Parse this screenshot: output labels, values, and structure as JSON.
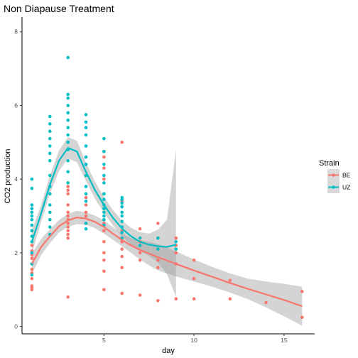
{
  "chart_data": {
    "type": "scatter",
    "title": "Non Diapause Treatment",
    "xlabel": "day",
    "ylabel": "CO2 production",
    "xlim": [
      0.45,
      16.7
    ],
    "ylim": [
      -0.2,
      8.4
    ],
    "x_ticks": [
      5,
      10,
      15
    ],
    "y_ticks": [
      0,
      2,
      4,
      6,
      8
    ],
    "grid": false,
    "legend": {
      "title": "Strain",
      "position": "right"
    },
    "series": [
      {
        "name": "BE",
        "color": "#F8766D",
        "points": [
          [
            1,
            1.0
          ],
          [
            1,
            1.05
          ],
          [
            1,
            1.1
          ],
          [
            1,
            1.3
          ],
          [
            1,
            1.45
          ],
          [
            1,
            1.55
          ],
          [
            1,
            1.7
          ],
          [
            1,
            1.85
          ],
          [
            1,
            1.95
          ],
          [
            1,
            2.05
          ],
          [
            1,
            2.2
          ],
          [
            3,
            0.8
          ],
          [
            3,
            2.4
          ],
          [
            3,
            2.5
          ],
          [
            3,
            2.6
          ],
          [
            3,
            2.7
          ],
          [
            3,
            2.8
          ],
          [
            3,
            2.9
          ],
          [
            3,
            3.0
          ],
          [
            3,
            3.1
          ],
          [
            3,
            3.3
          ],
          [
            3,
            3.6
          ],
          [
            3,
            3.7
          ],
          [
            3,
            3.8
          ],
          [
            4,
            2.8
          ],
          [
            4,
            3.0
          ],
          [
            4,
            3.1
          ],
          [
            4,
            3.3
          ],
          [
            4,
            3.5
          ],
          [
            5,
            1.0
          ],
          [
            5,
            1.5
          ],
          [
            5,
            1.8
          ],
          [
            5,
            2.0
          ],
          [
            5,
            2.3
          ],
          [
            5,
            2.6
          ],
          [
            5,
            2.8
          ],
          [
            5,
            3.3
          ],
          [
            5,
            3.6
          ],
          [
            5,
            4.0
          ],
          [
            5,
            4.3
          ],
          [
            5,
            4.6
          ],
          [
            5,
            4.75
          ],
          [
            6,
            0.9
          ],
          [
            6,
            1.6
          ],
          [
            6,
            1.9
          ],
          [
            6,
            2.1
          ],
          [
            6,
            2.3
          ],
          [
            6,
            2.6
          ],
          [
            6,
            3.4
          ],
          [
            6,
            5.0
          ],
          [
            7,
            0.85
          ],
          [
            7,
            1.8
          ],
          [
            7,
            2.0
          ],
          [
            7,
            2.3
          ],
          [
            7,
            2.65
          ],
          [
            8,
            0.7
          ],
          [
            8,
            1.6
          ],
          [
            8,
            1.8
          ],
          [
            8,
            2.1
          ],
          [
            8,
            2.4
          ],
          [
            8,
            2.8
          ],
          [
            9,
            0.75
          ],
          [
            9,
            1.7
          ],
          [
            9,
            2.0
          ],
          [
            9,
            2.2
          ],
          [
            9,
            2.4
          ],
          [
            10,
            0.75
          ],
          [
            10,
            1.3
          ],
          [
            10,
            1.8
          ],
          [
            12,
            0.75
          ],
          [
            12,
            1.25
          ],
          [
            14,
            0.65
          ],
          [
            16,
            0.25
          ],
          [
            16,
            0.95
          ]
        ],
        "smooth": [
          [
            1,
            1.7
          ],
          [
            1.5,
            2.15
          ],
          [
            2,
            2.45
          ],
          [
            2.5,
            2.72
          ],
          [
            3,
            2.88
          ],
          [
            3.5,
            2.96
          ],
          [
            4,
            2.93
          ],
          [
            4.5,
            2.84
          ],
          [
            5,
            2.7
          ],
          [
            5.5,
            2.52
          ],
          [
            6,
            2.35
          ],
          [
            6.5,
            2.2
          ],
          [
            7,
            2.08
          ],
          [
            7.5,
            1.98
          ],
          [
            8,
            1.88
          ],
          [
            9,
            1.7
          ],
          [
            10,
            1.52
          ],
          [
            11,
            1.35
          ],
          [
            12,
            1.18
          ],
          [
            13,
            1.02
          ],
          [
            14,
            0.87
          ],
          [
            15,
            0.72
          ],
          [
            16,
            0.55
          ]
        ],
        "band": [
          [
            1,
            1.42,
            1.98
          ],
          [
            1.5,
            1.93,
            2.37
          ],
          [
            2,
            2.26,
            2.64
          ],
          [
            2.5,
            2.55,
            2.89
          ],
          [
            3,
            2.7,
            3.06
          ],
          [
            3.5,
            2.78,
            3.14
          ],
          [
            4,
            2.76,
            3.1
          ],
          [
            4.5,
            2.67,
            3.01
          ],
          [
            5,
            2.52,
            2.88
          ],
          [
            5.5,
            2.35,
            2.69
          ],
          [
            6,
            2.18,
            2.52
          ],
          [
            6.5,
            2.0,
            2.4
          ],
          [
            7,
            1.82,
            2.34
          ],
          [
            7.5,
            1.66,
            2.3
          ],
          [
            8,
            1.52,
            2.24
          ],
          [
            9,
            1.36,
            2.04
          ],
          [
            10,
            1.22,
            1.82
          ],
          [
            11,
            1.08,
            1.62
          ],
          [
            12,
            0.92,
            1.44
          ],
          [
            13,
            0.74,
            1.3
          ],
          [
            14,
            0.52,
            1.22
          ],
          [
            15,
            0.28,
            1.16
          ],
          [
            16,
            0.02,
            1.08
          ]
        ]
      },
      {
        "name": "UZ",
        "color": "#00BFC4",
        "points": [
          [
            1,
            1.4
          ],
          [
            1,
            1.7
          ],
          [
            1,
            2.0
          ],
          [
            1,
            2.3
          ],
          [
            1,
            2.45
          ],
          [
            1,
            2.6
          ],
          [
            1,
            2.75
          ],
          [
            1,
            2.9
          ],
          [
            1,
            3.0
          ],
          [
            1,
            3.1
          ],
          [
            1,
            3.2
          ],
          [
            1,
            3.3
          ],
          [
            1,
            3.75
          ],
          [
            1,
            4.0
          ],
          [
            2,
            2.5
          ],
          [
            2,
            2.7
          ],
          [
            2,
            2.9
          ],
          [
            2,
            3.1
          ],
          [
            2,
            3.3
          ],
          [
            2,
            3.6
          ],
          [
            2,
            3.8
          ],
          [
            2,
            4.1
          ],
          [
            2,
            4.5
          ],
          [
            2,
            4.7
          ],
          [
            2,
            4.9
          ],
          [
            2,
            5.1
          ],
          [
            2,
            5.3
          ],
          [
            2,
            5.5
          ],
          [
            2,
            5.7
          ],
          [
            3,
            3.9
          ],
          [
            3,
            4.2
          ],
          [
            3,
            4.5
          ],
          [
            3,
            4.8
          ],
          [
            3,
            5.0
          ],
          [
            3,
            5.2
          ],
          [
            3,
            5.4
          ],
          [
            3,
            5.6
          ],
          [
            3,
            5.8
          ],
          [
            3,
            6.0
          ],
          [
            3,
            6.2
          ],
          [
            3,
            6.3
          ],
          [
            3,
            7.3
          ],
          [
            4,
            2.65
          ],
          [
            4,
            2.8
          ],
          [
            4,
            3.4
          ],
          [
            4,
            3.6
          ],
          [
            4,
            3.8
          ],
          [
            4,
            4.1
          ],
          [
            4,
            4.4
          ],
          [
            4,
            4.6
          ],
          [
            4,
            4.9
          ],
          [
            4,
            5.2
          ],
          [
            4,
            5.4
          ],
          [
            4,
            5.55
          ],
          [
            4,
            5.75
          ],
          [
            5,
            2.75
          ],
          [
            5,
            2.9
          ],
          [
            5,
            3.0
          ],
          [
            5,
            3.1
          ],
          [
            5,
            3.2
          ],
          [
            5,
            3.3
          ],
          [
            5,
            3.45
          ],
          [
            5,
            3.6
          ],
          [
            5,
            3.9
          ],
          [
            5,
            4.1
          ],
          [
            5,
            4.4
          ],
          [
            5,
            4.75
          ],
          [
            5,
            5.1
          ],
          [
            6,
            2.4
          ],
          [
            6,
            2.55
          ],
          [
            6,
            2.7
          ],
          [
            6,
            2.85
          ],
          [
            6,
            3.0
          ],
          [
            6,
            3.1
          ],
          [
            6,
            3.25
          ],
          [
            6,
            3.35
          ],
          [
            6,
            3.45
          ],
          [
            6,
            3.5
          ],
          [
            7,
            2.2
          ],
          [
            7,
            2.4
          ],
          [
            8,
            2.1
          ],
          [
            8,
            2.4
          ],
          [
            9,
            2.1
          ],
          [
            9,
            2.3
          ]
        ],
        "smooth": [
          [
            1,
            2.3
          ],
          [
            1.5,
            3.05
          ],
          [
            2,
            3.85
          ],
          [
            2.5,
            4.5
          ],
          [
            3,
            4.85
          ],
          [
            3.5,
            4.75
          ],
          [
            4,
            4.2
          ],
          [
            4.5,
            3.7
          ],
          [
            5,
            3.3
          ],
          [
            5.5,
            2.95
          ],
          [
            6,
            2.66
          ],
          [
            6.5,
            2.45
          ],
          [
            7,
            2.3
          ],
          [
            7.5,
            2.22
          ],
          [
            8,
            2.18
          ],
          [
            8.5,
            2.16
          ],
          [
            9,
            2.22
          ]
        ],
        "band": [
          [
            1,
            1.98,
            2.62
          ],
          [
            1.5,
            2.82,
            3.28
          ],
          [
            2,
            3.6,
            4.1
          ],
          [
            2.5,
            4.22,
            4.78
          ],
          [
            3,
            4.56,
            5.14
          ],
          [
            3.5,
            4.46,
            5.04
          ],
          [
            4,
            3.95,
            4.45
          ],
          [
            4.5,
            3.47,
            3.93
          ],
          [
            5,
            3.08,
            3.52
          ],
          [
            5.5,
            2.74,
            3.16
          ],
          [
            6,
            2.44,
            2.88
          ],
          [
            6.5,
            2.22,
            2.68
          ],
          [
            7,
            2.04,
            2.56
          ],
          [
            7.5,
            1.92,
            2.52
          ],
          [
            8,
            1.73,
            2.63
          ],
          [
            8.5,
            1.42,
            2.9
          ],
          [
            9,
            0.8,
            4.8
          ]
        ]
      }
    ]
  }
}
